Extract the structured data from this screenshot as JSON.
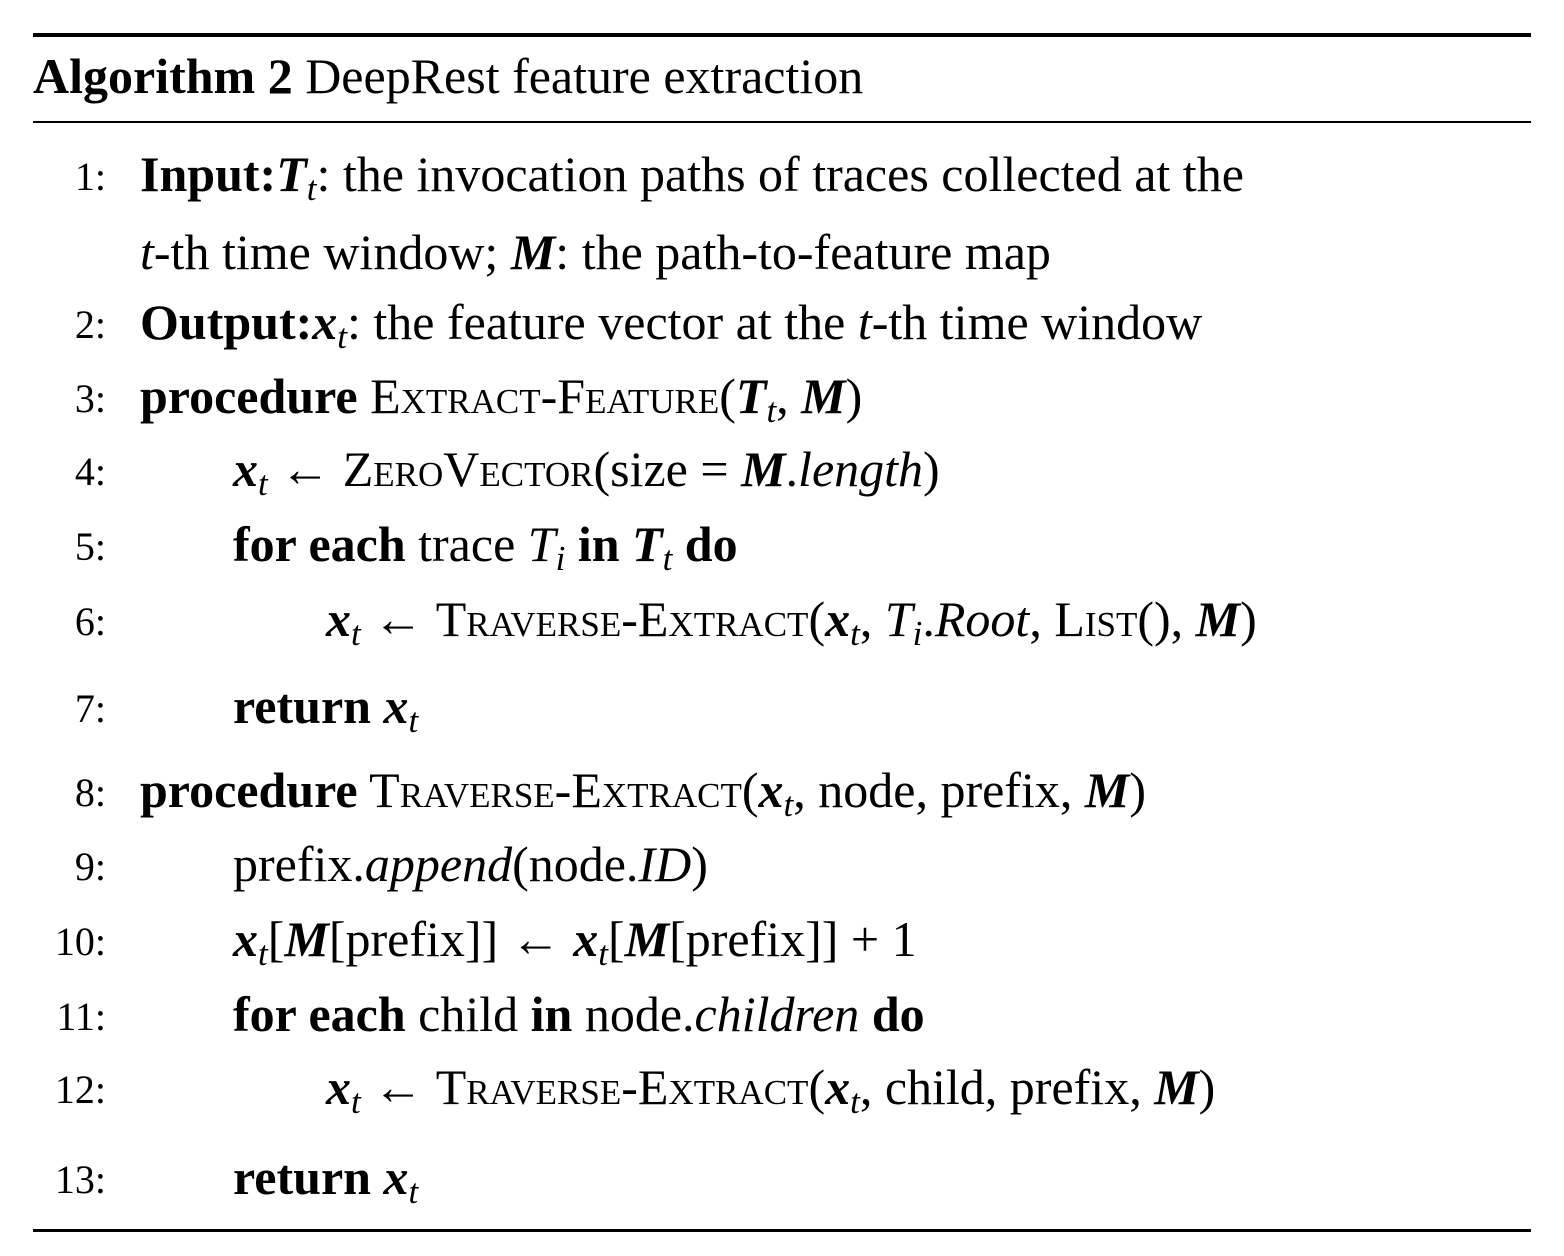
{
  "algorithm": {
    "label": "Algorithm 2",
    "title": "DeepRest feature extraction",
    "lines": [
      {
        "number": "1:",
        "parts": [
          "Input:",
          "T",
          "t",
          ": the invocation paths of traces collected at the",
          "t",
          "-th time window; ",
          "M",
          ": the path-to-feature map"
        ]
      },
      {
        "number": "2:",
        "parts": [
          "Output:",
          "x",
          "t",
          ": the feature vector at the ",
          "t",
          "-th time window"
        ]
      },
      {
        "number": "3:",
        "parts": [
          "procedure",
          " Extract-Feature",
          "(",
          "T",
          "t",
          ", ",
          "M",
          ")"
        ]
      },
      {
        "number": "4:",
        "parts": [
          "x",
          "t",
          " ← ",
          "ZeroVector",
          "(size = ",
          "M",
          ".",
          "length",
          ")"
        ]
      },
      {
        "number": "5:",
        "parts": [
          "for each",
          " trace ",
          "T",
          "i",
          " in ",
          "T",
          "t",
          " do"
        ]
      },
      {
        "number": "6:",
        "parts": [
          "x",
          "t",
          " ← ",
          "Traverse-Extract",
          "(",
          "x",
          "t",
          ", ",
          "T",
          "i",
          ".",
          "Root",
          ", ",
          "List",
          "(), ",
          "M",
          ")"
        ]
      },
      {
        "number": "7:",
        "parts": [
          "return ",
          "x",
          "t"
        ]
      },
      {
        "number": "8:",
        "parts": [
          "procedure",
          " Traverse-Extract",
          "(",
          "x",
          "t",
          ", node, prefix, ",
          "M",
          ")"
        ]
      },
      {
        "number": "9:",
        "parts": [
          "prefix.",
          "append",
          "(node.",
          "ID",
          ")"
        ]
      },
      {
        "number": "10:",
        "parts": [
          "x",
          "t",
          "[",
          "M",
          "[prefix]] ← ",
          "x",
          "t",
          "[",
          "M",
          "[prefix]] + 1"
        ]
      },
      {
        "number": "11:",
        "parts": [
          "for each",
          " child ",
          "in",
          " node.",
          "children",
          " do"
        ]
      },
      {
        "number": "12:",
        "parts": [
          "x",
          "t",
          " ← ",
          "Traverse-Extract",
          "(",
          "x",
          "t",
          ", child, prefix, ",
          "M",
          ")"
        ]
      },
      {
        "number": "13:",
        "parts": [
          "return ",
          "x",
          "t"
        ]
      }
    ]
  }
}
